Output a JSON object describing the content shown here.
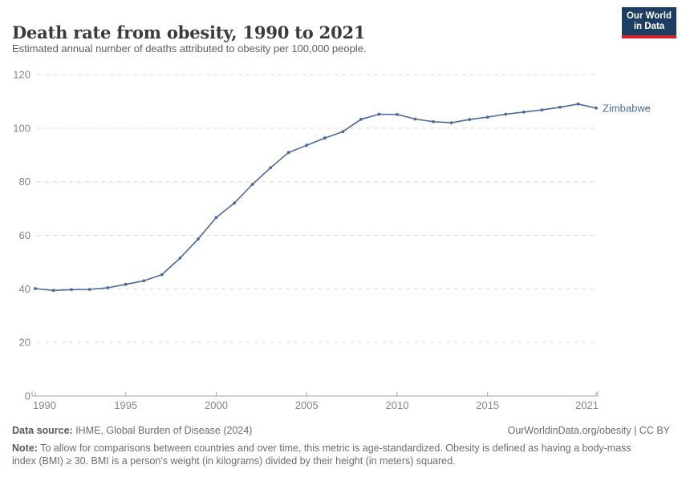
{
  "header": {
    "title": "Death rate from obesity, 1990 to 2021",
    "subtitle": "Estimated annual number of deaths attributed to obesity per 100,000 people.",
    "logo": {
      "line1": "Our World",
      "line2": "in Data",
      "bg": "#1d3d63",
      "stripe": "#d0232a"
    }
  },
  "chart_data": {
    "type": "line",
    "title": "Death rate from obesity, 1990 to 2021",
    "xlabel": "",
    "ylabel": "",
    "ylim": [
      0,
      120
    ],
    "yticks": [
      0,
      20,
      40,
      60,
      80,
      100,
      120
    ],
    "xticks": [
      1990,
      1995,
      2000,
      2005,
      2010,
      2015,
      2021
    ],
    "grid": "horizontal-dashed",
    "legend_position": "end-of-line-label",
    "x": [
      1990,
      1991,
      1992,
      1993,
      1994,
      1995,
      1996,
      1997,
      1998,
      1999,
      2000,
      2001,
      2002,
      2003,
      2004,
      2005,
      2006,
      2007,
      2008,
      2009,
      2010,
      2011,
      2012,
      2013,
      2014,
      2015,
      2016,
      2017,
      2018,
      2019,
      2020,
      2021
    ],
    "series": [
      {
        "name": "Zimbabwe",
        "color": "#4C6A9C",
        "values": [
          40.1,
          39.4,
          39.7,
          39.8,
          40.4,
          41.7,
          43.0,
          45.3,
          51.5,
          58.6,
          66.6,
          72.0,
          79.0,
          85.2,
          90.9,
          93.6,
          96.3,
          98.7,
          103.3,
          105.2,
          105.1,
          103.4,
          102.4,
          102.0,
          103.2,
          104.1,
          105.2,
          106.0,
          106.8,
          107.8,
          109.0,
          107.5
        ]
      }
    ],
    "colors": {
      "line": "#4C6A9C",
      "gridline": "#dcdcdc",
      "axis": "#a6a6a6",
      "tick_label": "#858585"
    }
  },
  "footer": {
    "datasource_label": "Data source:",
    "datasource_text": " IHME, Global Burden of Disease (2024)",
    "attribution": "OurWorldinData.org/obesity | CC BY",
    "note_label": "Note:",
    "note_text": " To allow for comparisons between countries and over time, this metric is age-standardized. Obesity is defined as having a body-mass index (BMI) ≥ 30. BMI is a person's weight (in kilograms) divided by their height (in meters) squared."
  }
}
